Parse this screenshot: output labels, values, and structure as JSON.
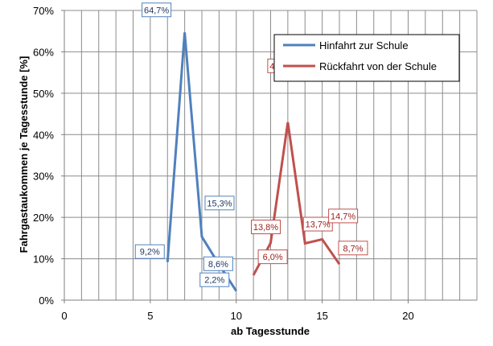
{
  "chart_data": {
    "type": "line",
    "title": "",
    "xlabel": "ab Tagesstunde",
    "ylabel": "Fahrgastaukommen je Tagesstunde [%]",
    "xlim": [
      0,
      24
    ],
    "ylim": [
      0,
      70
    ],
    "x_ticks": [
      0,
      5,
      10,
      15,
      20
    ],
    "y_ticks": [
      0,
      10,
      20,
      30,
      40,
      50,
      60,
      70
    ],
    "y_tick_labels": [
      "0%",
      "10%",
      "20%",
      "30%",
      "40%",
      "50%",
      "60%",
      "70%"
    ],
    "grid": {
      "vertical_minor_step": 1,
      "horizontal_step": 10
    },
    "legend": {
      "position": "top-right"
    },
    "series": [
      {
        "name": "Hinfahrt zur Schule",
        "color": "#4f81bd",
        "x": [
          6,
          7,
          8,
          9,
          10
        ],
        "y": [
          9.2,
          64.7,
          15.3,
          8.6,
          2.2
        ],
        "labels": [
          "9,2%",
          "64,7%",
          "15,3%",
          "8,6%",
          "2,2%"
        ]
      },
      {
        "name": "Rückfahrt von der Schule",
        "color": "#c0504d",
        "x": [
          11,
          12,
          13,
          14,
          15,
          16
        ],
        "y": [
          6.0,
          13.8,
          43.0,
          13.7,
          14.7,
          8.7
        ],
        "labels": [
          "6,0%",
          "13,8%",
          "43,0%",
          "13,7%",
          "14,7%",
          "8,7%"
        ]
      }
    ]
  }
}
